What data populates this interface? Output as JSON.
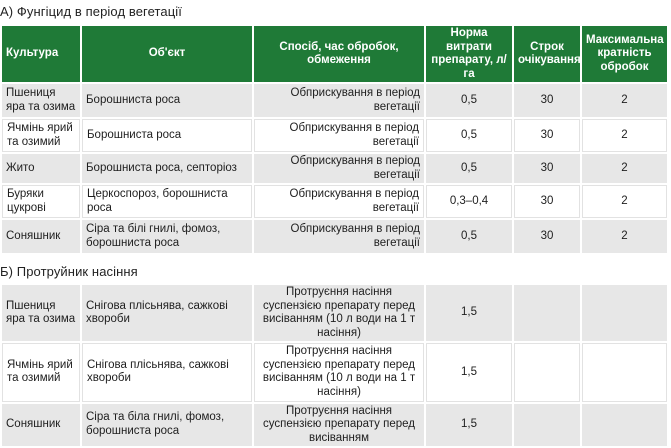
{
  "section_a": {
    "title": "А) Фунгіцид в період вегетації",
    "headers": {
      "crop": "Культура",
      "object": "Об'єкт",
      "method": "Спосіб, час обробок, обмеження",
      "rate": "Норма витрати препарату, л/га",
      "waiting": "Строк очікування",
      "max": "Максимальна кратність обробок"
    },
    "rows": [
      {
        "crop": "Пшениця яра та озима",
        "object": "Борошниста роса",
        "method": "Обприскування в період вегетації",
        "rate": "0,5",
        "waiting": "30",
        "max": "2"
      },
      {
        "crop": "Ячмінь ярий та озимий",
        "object": "Борошниста роса",
        "method": "Обприскування в період вегетації",
        "rate": "0,5",
        "waiting": "30",
        "max": "2"
      },
      {
        "crop": "Жито",
        "object": "Борошниста роса, септоріоз",
        "method": "Обприскування в період вегетації",
        "rate": "0,5",
        "waiting": "30",
        "max": "2"
      },
      {
        "crop": "Буряки цукрові",
        "object": "Церкоспороз, борошниста роса",
        "method": "Обприскування в період вегетації",
        "rate": "0,3–0,4",
        "waiting": "30",
        "max": "2"
      },
      {
        "crop": "Соняшник",
        "object": "Сіра та білі гнилі, фомоз, борошниста роса",
        "method": "Обприскування в період вегетації",
        "rate": "0,5",
        "waiting": "30",
        "max": "2"
      }
    ]
  },
  "section_b": {
    "title": "Б) Протруйник насіння",
    "rows": [
      {
        "crop": "Пшениця яра та озима",
        "object": "Снігова плісьнява, сажкові хвороби",
        "method": "Протруєння насіння суспензією препарату перед висіванням (10 л води на 1 т насіння)",
        "rate": "1,5",
        "waiting": "",
        "max": ""
      },
      {
        "crop": "Ячмінь ярий та озимий",
        "object": "Снігова плісьнява, сажкові хвороби",
        "method": "Протруєння насіння суспензією препарату перед висіванням (10 л води на 1 т насіння)",
        "rate": "1,5",
        "waiting": "",
        "max": ""
      },
      {
        "crop": "Соняшник",
        "object": "Сіра та біла гнилі, фомоз, борошниста роса",
        "method": "Протруєння насіння суспензією препарату перед висіванням",
        "rate": "1,5",
        "waiting": "",
        "max": ""
      }
    ]
  },
  "colors": {
    "header_bg": "#1f7a37",
    "row_shade": "#e7e7e7"
  }
}
